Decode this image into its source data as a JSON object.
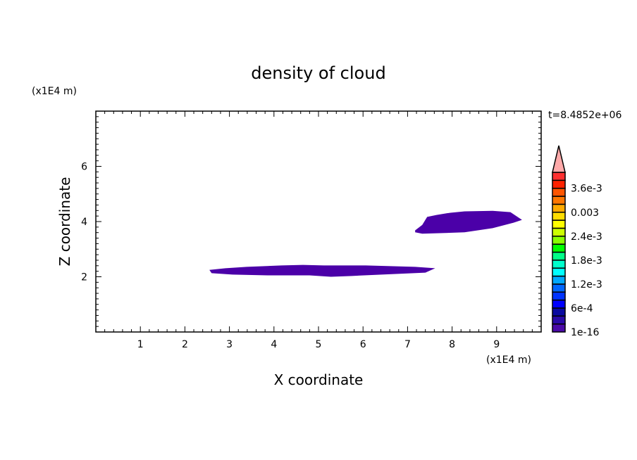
{
  "chart_data": {
    "type": "heatmap",
    "title": "density of cloud",
    "xlabel": "X coordinate",
    "ylabel": "Z coordinate",
    "x_unit": "(x1E4 m)",
    "y_unit": "(x1E4 m)",
    "time_label": "t=8.4852e+06",
    "xlim": [
      0,
      10
    ],
    "ylim": [
      0,
      8
    ],
    "x_ticks": [
      1,
      2,
      3,
      4,
      5,
      6,
      7,
      8,
      9
    ],
    "y_ticks": [
      2,
      4,
      6
    ],
    "minor_tick_step": 0.2,
    "grid": false,
    "regions": [
      {
        "level": "1e-16",
        "color": "#4b00a8",
        "outline": [
          [
            2.55,
            2.25
          ],
          [
            2.91,
            2.31
          ],
          [
            3.39,
            2.36
          ],
          [
            4.17,
            2.41
          ],
          [
            4.65,
            2.43
          ],
          [
            5.12,
            2.41
          ],
          [
            6.06,
            2.41
          ],
          [
            7.17,
            2.36
          ],
          [
            7.62,
            2.31
          ],
          [
            7.4,
            2.15
          ],
          [
            6.69,
            2.1
          ],
          [
            5.75,
            2.03
          ],
          [
            5.28,
            2.0
          ],
          [
            4.8,
            2.05
          ],
          [
            3.86,
            2.05
          ],
          [
            3.07,
            2.08
          ],
          [
            2.6,
            2.13
          ],
          [
            2.57,
            2.2
          ]
        ]
      },
      {
        "level": "1e-16",
        "color": "#4b00a8",
        "outline": [
          [
            7.17,
            3.68
          ],
          [
            7.33,
            3.88
          ],
          [
            7.44,
            4.17
          ],
          [
            7.65,
            4.24
          ],
          [
            7.96,
            4.32
          ],
          [
            8.28,
            4.37
          ],
          [
            8.91,
            4.39
          ],
          [
            9.31,
            4.34
          ],
          [
            9.57,
            4.06
          ],
          [
            9.38,
            3.96
          ],
          [
            8.91,
            3.76
          ],
          [
            8.28,
            3.61
          ],
          [
            7.33,
            3.56
          ],
          [
            7.17,
            3.61
          ]
        ]
      }
    ],
    "colorbar": {
      "colors": [
        "#4b0aa8",
        "#2a0aa8",
        "#0a0aa0",
        "#0000ff",
        "#0033ff",
        "#0066ff",
        "#00a8ff",
        "#00ffff",
        "#00ffcc",
        "#00ff88",
        "#00ff00",
        "#88ff00",
        "#ccff00",
        "#ffff00",
        "#ffdd00",
        "#ffaa00",
        "#ff7700",
        "#ff5500",
        "#ff2200",
        "#ff3030"
      ],
      "over_color": "#ffaaaa",
      "labels": [
        "1e-16",
        "6e-4",
        "1.2e-3",
        "1.8e-3",
        "2.4e-3",
        "0.003",
        "3.6e-3"
      ]
    }
  }
}
